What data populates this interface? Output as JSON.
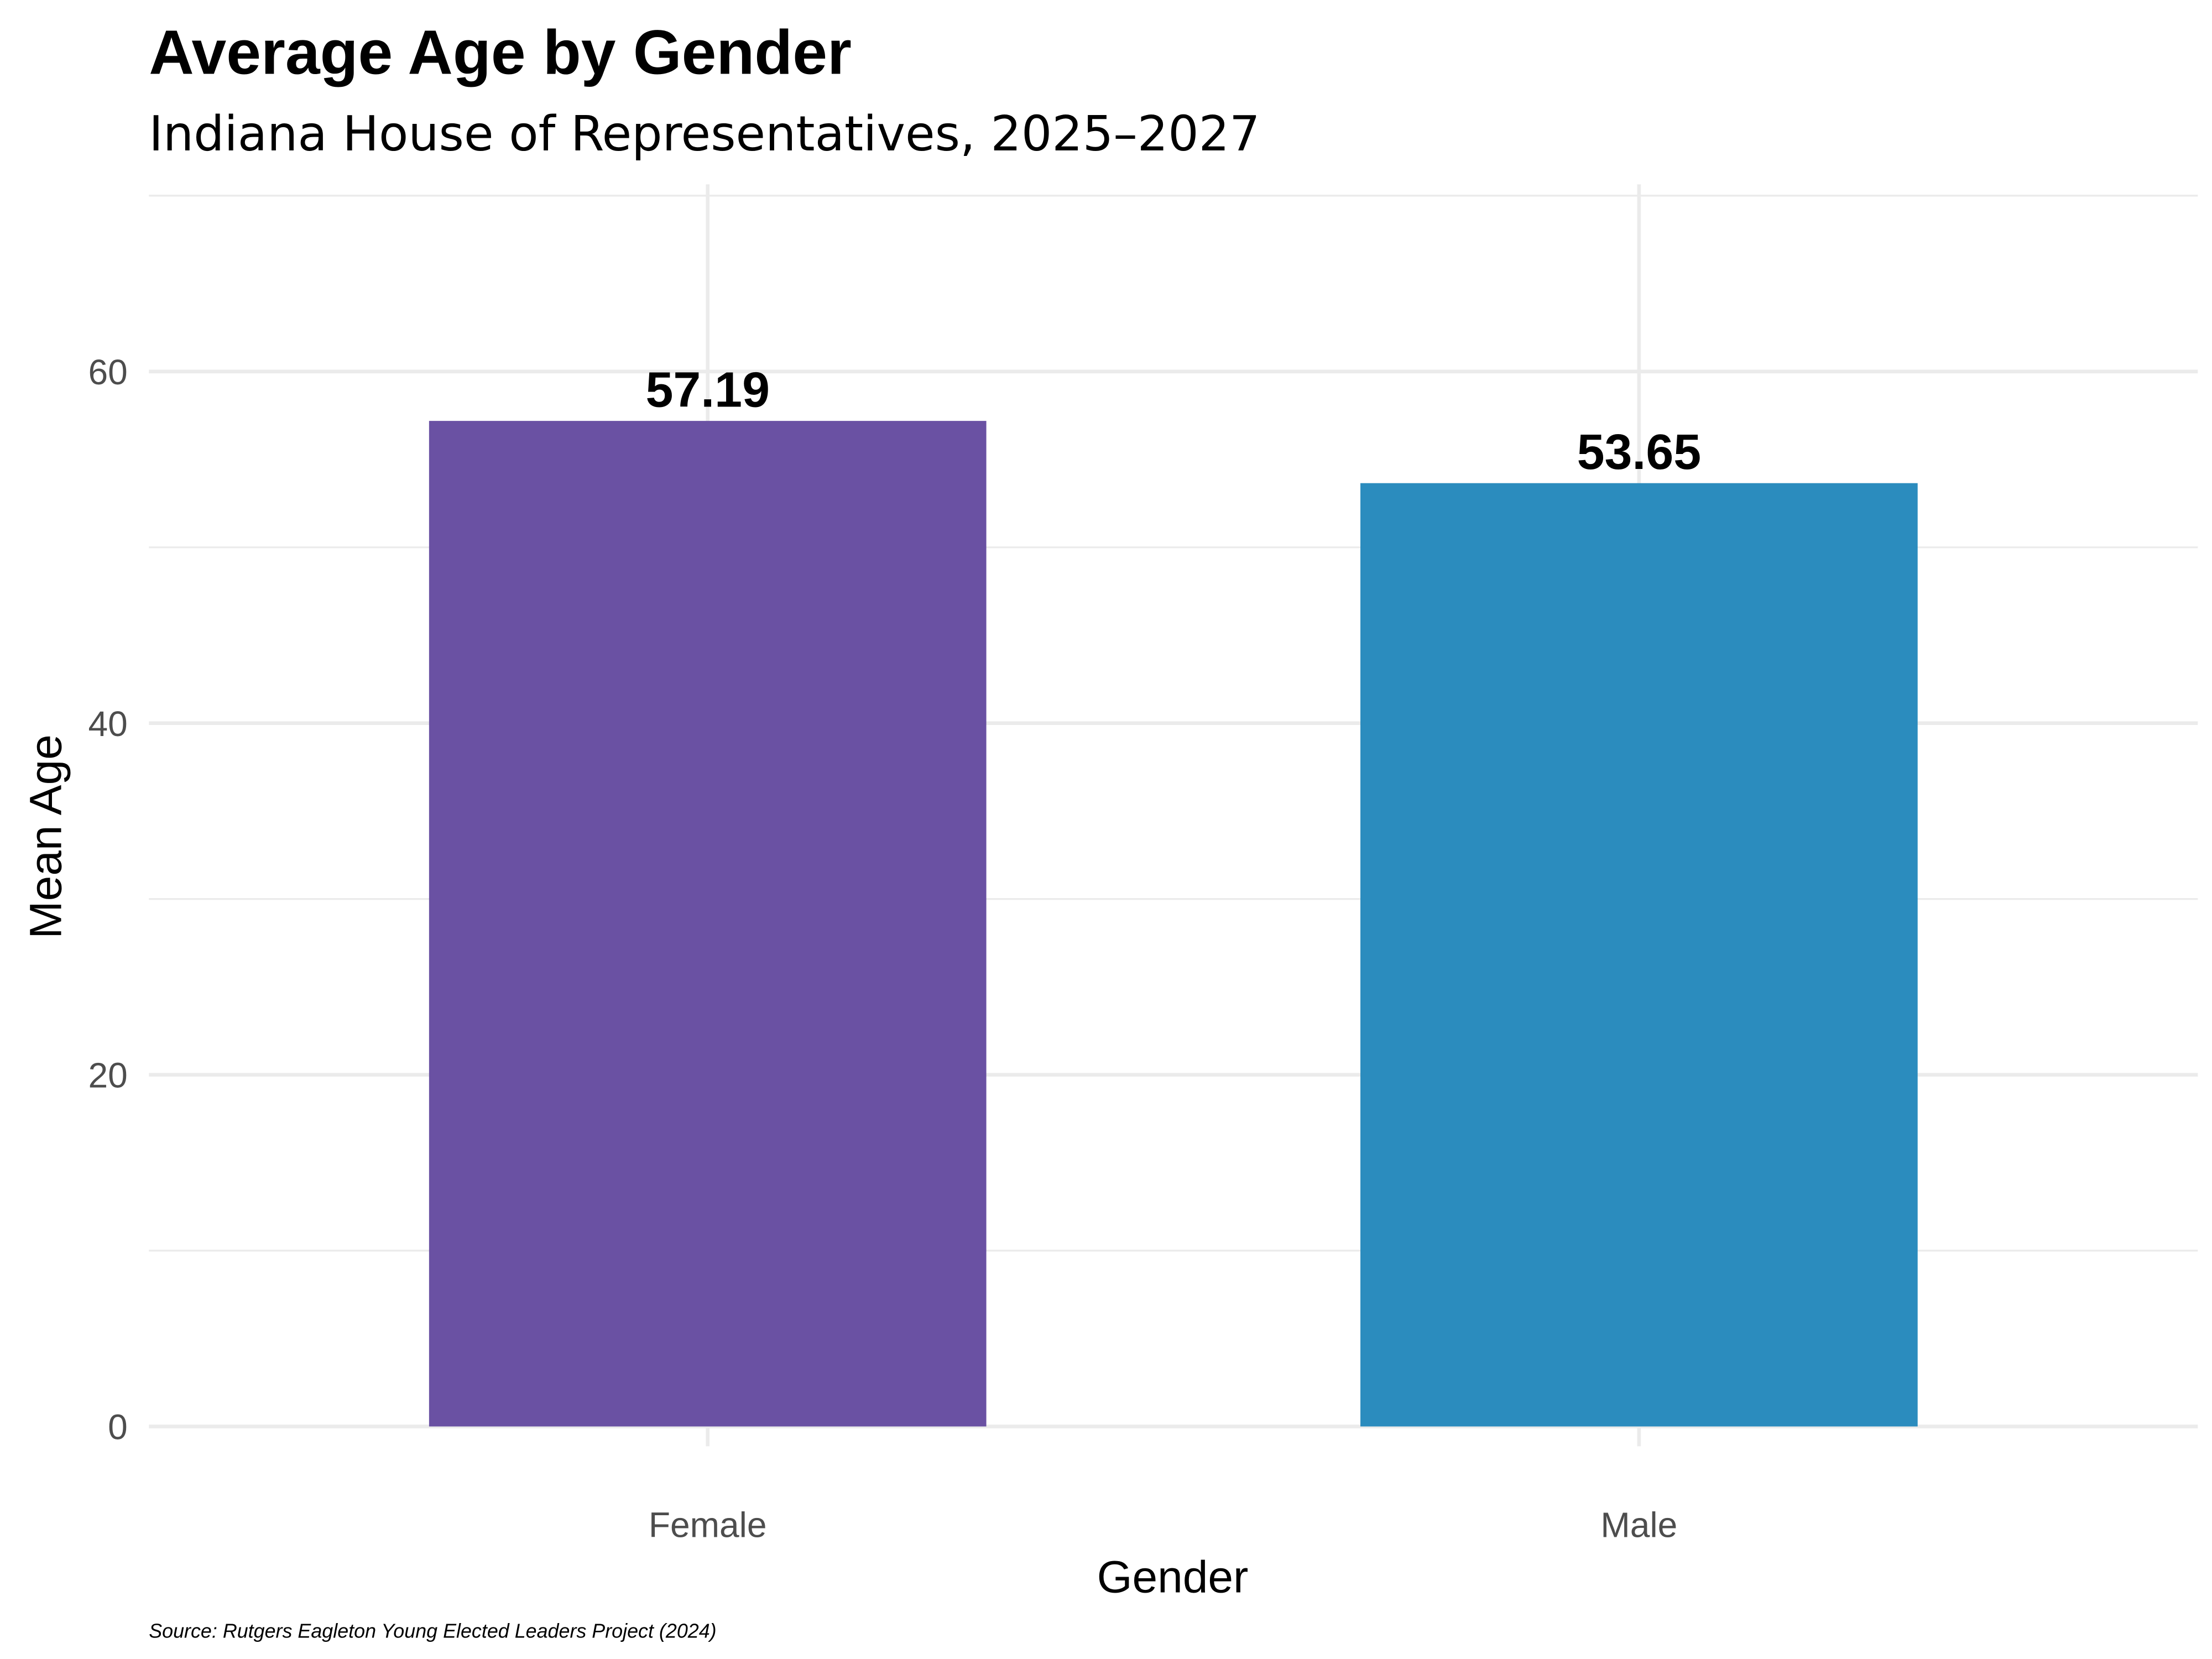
{
  "chart_data": {
    "type": "bar",
    "title": "Average Age by Gender",
    "subtitle": "Indiana House of Representatives, 2025–2027",
    "xlabel": "Gender",
    "ylabel": "Mean Age",
    "categories": [
      "Female",
      "Male"
    ],
    "values": [
      57.19,
      53.65
    ],
    "data_labels": [
      "57.19",
      "53.65"
    ],
    "colors": [
      "#6A51A3",
      "#2B8CBE"
    ],
    "ylim": [
      0,
      70
    ],
    "yticks": [
      0,
      20,
      40,
      60
    ],
    "ytick_labels": [
      "0",
      "20",
      "40",
      "60"
    ],
    "grid": true,
    "legend": "none",
    "caption": "Source: Rutgers Eagleton Young Elected Leaders Project (2024)"
  }
}
